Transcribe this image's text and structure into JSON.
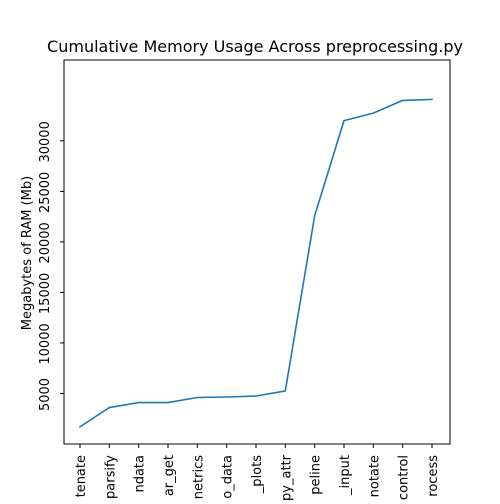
{
  "chart_data": {
    "type": "line",
    "title": "Cumulative Memory Usage Across preprocessing.py",
    "xlabel": "",
    "ylabel": "Megabytes of RAM (Mb)",
    "categories": [
      "tenate",
      "parsify",
      "ndata",
      "ar_get",
      "netrics",
      "o_data",
      "_plots",
      "py_attr",
      "peline",
      "_input",
      "notate",
      "control",
      "rocess"
    ],
    "series": [
      {
        "name": "",
        "color": "#1f77b4",
        "values": [
          1700,
          3600,
          4100,
          4100,
          4600,
          4650,
          4750,
          5250,
          22600,
          32000,
          32750,
          34000,
          34100
        ]
      }
    ],
    "yticks": [
      5000,
      10000,
      15000,
      20000,
      25000,
      30000
    ],
    "ylim": [
      0,
      38000
    ],
    "grid": false,
    "legend": "none"
  }
}
